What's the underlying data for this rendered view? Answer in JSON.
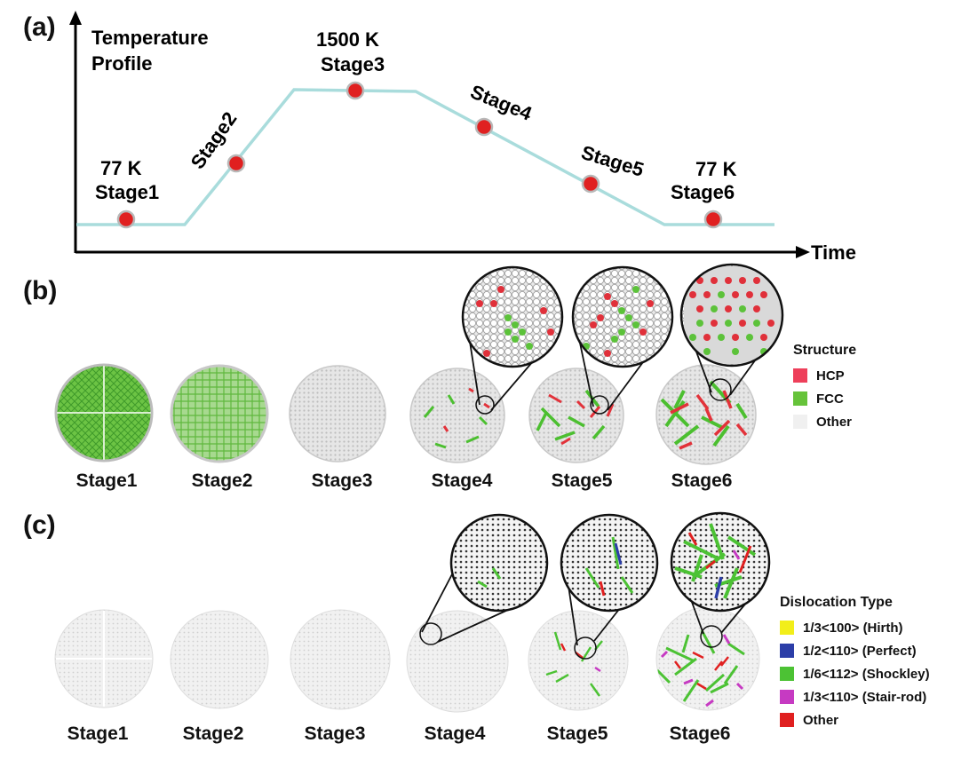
{
  "panels": {
    "a": "(a)",
    "b": "(b)",
    "c": "(c)"
  },
  "profile": {
    "title_line1": "Temperature",
    "title_line2": "Profile",
    "time_label": "Time",
    "temp_low_1": "77 K",
    "temp_high": "1500 K",
    "temp_low_2": "77 K",
    "stages": [
      "Stage1",
      "Stage2",
      "Stage3",
      "Stage4",
      "Stage5",
      "Stage6"
    ],
    "line_color": "#a9dcdc",
    "point_color": "#e02020"
  },
  "structure": {
    "legend_title": "Structure",
    "items": [
      {
        "label": "HCP",
        "color": "#ee3f5a"
      },
      {
        "label": "FCC",
        "color": "#66c33a"
      },
      {
        "label": "Other",
        "color": "#f0f0f0"
      }
    ],
    "stage_labels": [
      "Stage1",
      "Stage2",
      "Stage3",
      "Stage4",
      "Stage5",
      "Stage6"
    ]
  },
  "dislocation": {
    "legend_title": "Dislocation Type",
    "items": [
      {
        "label": "1/3<100> (Hirth)",
        "color": "#f2ee1a"
      },
      {
        "label": "1/2<110> (Perfect)",
        "color": "#2c3ea8"
      },
      {
        "label": "1/6<112> (Shockley)",
        "color": "#4cc234"
      },
      {
        "label": "1/3<110> (Stair-rod)",
        "color": "#c63ac2"
      },
      {
        "label": "Other",
        "color": "#e02020"
      }
    ],
    "stage_labels": [
      "Stage1",
      "Stage2",
      "Stage3",
      "Stage4",
      "Stage5",
      "Stage6"
    ]
  }
}
